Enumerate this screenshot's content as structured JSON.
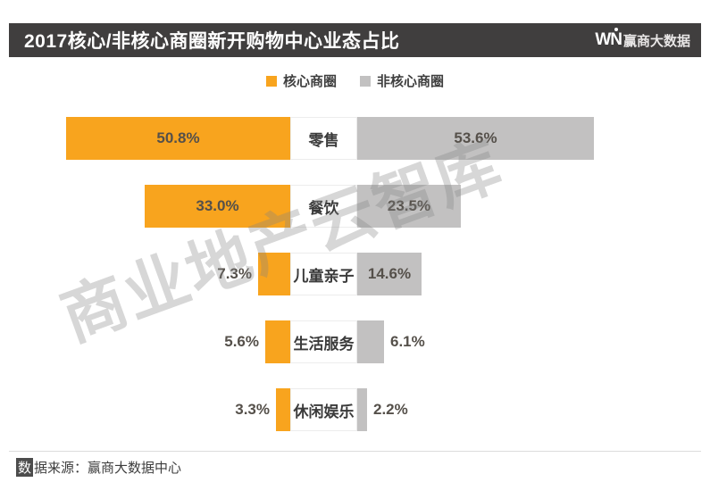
{
  "header": {
    "title": "2017核心/非核心商圈新开购物中心业态占比",
    "logo": {
      "win": "WN",
      "cn": "赢商大数据"
    }
  },
  "legend": {
    "items": [
      {
        "label": "核心商圈",
        "color": "#F8A41E"
      },
      {
        "label": "非核心商圈",
        "color": "#C2C1C1"
      }
    ]
  },
  "chart_data": {
    "type": "bar",
    "variant": "bidirectional-tornado",
    "title": "2017核心/非核心商圈新开购物中心业态占比",
    "categories": [
      "零售",
      "餐饮",
      "儿童亲子",
      "生活服务",
      "休闲娱乐"
    ],
    "series": [
      {
        "name": "核心商圈",
        "side": "left",
        "color": "#F8A41E",
        "values": [
          50.8,
          33.0,
          7.3,
          5.6,
          3.3
        ],
        "labels": [
          "50.8%",
          "33.0%",
          "7.3%",
          "5.6%",
          "3.3%"
        ]
      },
      {
        "name": "非核心商圈",
        "side": "right",
        "color": "#C2C1C1",
        "values": [
          53.6,
          23.5,
          14.6,
          6.1,
          2.2
        ],
        "labels": [
          "53.6%",
          "23.5%",
          "14.6%",
          "6.1%",
          "2.2%"
        ]
      }
    ],
    "unit": "%",
    "axis": "hidden",
    "legend_position": "top-center"
  },
  "watermark": "商业地产云智库",
  "footer": {
    "source_first": "数",
    "source_rest": "据来源：赢商大数据中心"
  }
}
